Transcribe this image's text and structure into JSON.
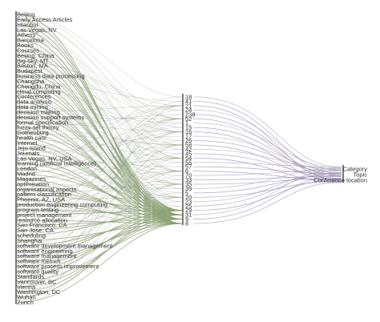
{
  "diagram": {
    "left_labels": [
      "Beijing",
      "Early Access Articles",
      "Istanbul",
      "Las Vegas, NV",
      "Athens",
      "Barcelona",
      "Books",
      "Courses",
      "Beijing, China",
      "Big Sky, MT",
      "Boston, MA",
      "Budapest",
      "business data processing",
      "Changsha",
      "Chengdu, China",
      "cloud computing",
      "Conferences",
      "data analysis",
      "data mining",
      "decision making",
      "decision support systems",
      "formal specification",
      "fuzzy set theory",
      "Gothenburg",
      "health care",
      "Internet",
      "Jeju Island",
      "Journals",
      "Las Vegas, NV, USA",
      "learning (artificial intelligence)",
      "London",
      "Madrid",
      "Magazines",
      "optimisation",
      "organisational aspects",
      "pattern classification",
      "Phoenix, AZ, USA",
      "production engineering computing",
      "program testing",
      "project management",
      "resource allocation",
      "San Francisco, CA",
      "San Jose, CA",
      "scheduling",
      "Shanghai",
      "software development management",
      "software engineering",
      "software management",
      "software metrics",
      "software process improvement",
      "software quality",
      "Standards",
      "Vancouver, BC",
      "Vienna",
      "Washington, DC",
      "Wuhan",
      "Zurich"
    ],
    "middle_numbers": [
      "18",
      "41",
      "21",
      "24",
      "238",
      "52",
      "1",
      "15",
      "16",
      "17",
      "26",
      "58",
      "42",
      "45",
      "54",
      "55",
      "57",
      "6",
      "70",
      "33",
      "35",
      "39",
      "5",
      "20",
      "23",
      "25",
      "29",
      "31",
      "9",
      "8"
    ],
    "right_labels": [
      "Category",
      "Topic",
      "Conference location"
    ],
    "colors": {
      "left_flow": "#8aa070",
      "left_flow_alt": "#9a9aaa",
      "right_flow": "#8c7aa8",
      "axis": "#222222"
    }
  }
}
